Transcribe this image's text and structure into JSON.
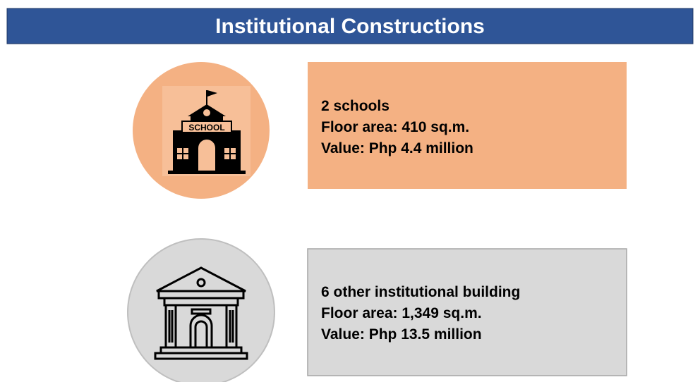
{
  "header": {
    "title": "Institutional Constructions"
  },
  "items": [
    {
      "icon_label": "SCHOOL",
      "lines": [
        "2 schools",
        "Floor area: 410 sq.m.",
        "Value: Php 4.4 million"
      ]
    },
    {
      "lines": [
        "6 other institutional building",
        "Floor area: 1,349 sq.m.",
        "Value: Php 13.5 million"
      ]
    }
  ]
}
